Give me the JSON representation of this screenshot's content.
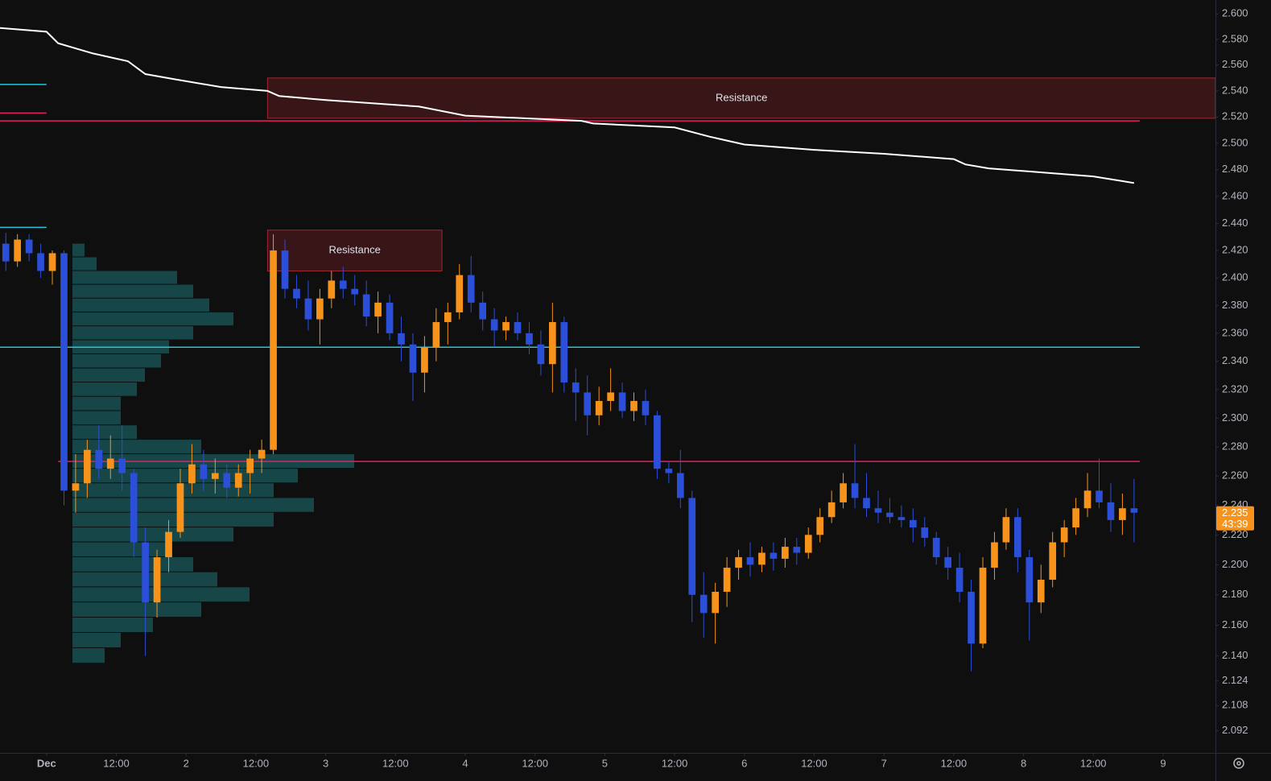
{
  "chart_data": {
    "type": "candlestick",
    "x": [
      "Nov 30 16:00",
      "Nov 30 18:00",
      "Nov 30 20:00",
      "Nov 30 22:00",
      "Dec 1 00:00",
      "Dec 1 02:00",
      "Dec 1 04:00",
      "Dec 1 06:00",
      "Dec 1 08:00",
      "Dec 1 10:00",
      "Dec 1 12:00",
      "Dec 1 14:00",
      "Dec 1 16:00",
      "Dec 1 18:00",
      "Dec 1 20:00",
      "Dec 1 22:00",
      "Dec 2 00:00",
      "Dec 2 02:00",
      "Dec 2 04:00",
      "Dec 2 06:00",
      "Dec 2 08:00",
      "Dec 2 10:00",
      "Dec 2 12:00",
      "Dec 2 14:00",
      "Dec 2 16:00",
      "Dec 2 18:00",
      "Dec 2 20:00",
      "Dec 2 22:00",
      "Dec 3 00:00",
      "Dec 3 02:00",
      "Dec 3 04:00",
      "Dec 3 06:00",
      "Dec 3 08:00",
      "Dec 3 10:00",
      "Dec 3 12:00",
      "Dec 3 14:00",
      "Dec 3 16:00",
      "Dec 3 18:00",
      "Dec 3 20:00",
      "Dec 3 22:00",
      "Dec 4 00:00",
      "Dec 4 02:00",
      "Dec 4 04:00",
      "Dec 4 06:00",
      "Dec 4 08:00",
      "Dec 4 10:00",
      "Dec 4 12:00",
      "Dec 4 14:00",
      "Dec 4 16:00",
      "Dec 4 18:00",
      "Dec 4 20:00",
      "Dec 4 22:00",
      "Dec 5 00:00",
      "Dec 5 02:00",
      "Dec 5 04:00",
      "Dec 5 06:00",
      "Dec 5 08:00",
      "Dec 5 10:00",
      "Dec 5 12:00",
      "Dec 5 14:00",
      "Dec 5 16:00",
      "Dec 5 18:00",
      "Dec 5 20:00",
      "Dec 5 22:00",
      "Dec 6 00:00",
      "Dec 6 02:00",
      "Dec 6 04:00",
      "Dec 6 06:00",
      "Dec 6 08:00",
      "Dec 6 10:00",
      "Dec 6 12:00",
      "Dec 6 14:00",
      "Dec 6 16:00",
      "Dec 6 18:00",
      "Dec 6 20:00",
      "Dec 6 22:00",
      "Dec 7 00:00",
      "Dec 7 02:00",
      "Dec 7 04:00",
      "Dec 7 06:00",
      "Dec 7 08:00",
      "Dec 7 10:00",
      "Dec 7 12:00",
      "Dec 7 14:00",
      "Dec 7 16:00",
      "Dec 7 18:00",
      "Dec 7 20:00",
      "Dec 7 22:00",
      "Dec 8 00:00",
      "Dec 8 02:00",
      "Dec 8 04:00",
      "Dec 8 06:00",
      "Dec 8 08:00",
      "Dec 8 10:00",
      "Dec 8 12:00",
      "Dec 8 14:00",
      "Dec 8 16:00",
      "Dec 8 18:00"
    ],
    "open": [
      2.425,
      2.412,
      2.428,
      2.418,
      2.405,
      2.418,
      2.25,
      2.255,
      2.278,
      2.265,
      2.272,
      2.262,
      2.215,
      2.175,
      2.205,
      2.222,
      2.255,
      2.268,
      2.258,
      2.262,
      2.252,
      2.262,
      2.272,
      2.278,
      2.42,
      2.392,
      2.385,
      2.37,
      2.385,
      2.398,
      2.392,
      2.388,
      2.372,
      2.382,
      2.36,
      2.352,
      2.332,
      2.35,
      2.368,
      2.375,
      2.402,
      2.382,
      2.37,
      2.362,
      2.368,
      2.36,
      2.352,
      2.338,
      2.368,
      2.325,
      2.318,
      2.302,
      2.312,
      2.318,
      2.305,
      2.312,
      2.302,
      2.265,
      2.262,
      2.245,
      2.18,
      2.168,
      2.182,
      2.198,
      2.205,
      2.2,
      2.208,
      2.204,
      2.212,
      2.208,
      2.22,
      2.232,
      2.242,
      2.255,
      2.245,
      2.238,
      2.235,
      2.232,
      2.23,
      2.225,
      2.218,
      2.205,
      2.198,
      2.182,
      2.148,
      2.198,
      2.215,
      2.232,
      2.205,
      2.175,
      2.19,
      2.215,
      2.225,
      2.238,
      2.25,
      2.242,
      2.23,
      2.238
    ],
    "high": [
      2.433,
      2.432,
      2.432,
      2.425,
      2.42,
      2.42,
      2.275,
      2.285,
      2.295,
      2.288,
      2.295,
      2.265,
      2.225,
      2.21,
      2.23,
      2.265,
      2.282,
      2.278,
      2.272,
      2.268,
      2.268,
      2.278,
      2.285,
      2.432,
      2.428,
      2.402,
      2.398,
      2.392,
      2.405,
      2.408,
      2.402,
      2.398,
      2.39,
      2.388,
      2.372,
      2.36,
      2.358,
      2.378,
      2.382,
      2.41,
      2.416,
      2.39,
      2.378,
      2.372,
      2.375,
      2.368,
      2.362,
      2.382,
      2.372,
      2.335,
      2.33,
      2.322,
      2.335,
      2.325,
      2.318,
      2.32,
      2.305,
      2.27,
      2.278,
      2.25,
      2.195,
      2.188,
      2.205,
      2.21,
      2.215,
      2.212,
      2.215,
      2.218,
      2.218,
      2.225,
      2.238,
      2.25,
      2.262,
      2.282,
      2.262,
      2.25,
      2.245,
      2.24,
      2.238,
      2.232,
      2.222,
      2.212,
      2.208,
      2.19,
      2.205,
      2.222,
      2.238,
      2.238,
      2.21,
      2.2,
      2.222,
      2.23,
      2.245,
      2.262,
      2.272,
      2.255,
      2.248,
      2.258
    ],
    "low": [
      2.405,
      2.408,
      2.412,
      2.4,
      2.395,
      2.24,
      2.235,
      2.245,
      2.258,
      2.258,
      2.25,
      2.205,
      2.14,
      2.165,
      2.195,
      2.218,
      2.248,
      2.25,
      2.248,
      2.245,
      2.246,
      2.248,
      2.262,
      2.275,
      2.385,
      2.378,
      2.362,
      2.352,
      2.378,
      2.385,
      2.38,
      2.365,
      2.36,
      2.355,
      2.34,
      2.312,
      2.318,
      2.34,
      2.352,
      2.37,
      2.375,
      2.362,
      2.35,
      2.355,
      2.355,
      2.345,
      2.33,
      2.318,
      2.318,
      2.298,
      2.288,
      2.295,
      2.305,
      2.3,
      2.298,
      2.295,
      2.258,
      2.255,
      2.238,
      2.162,
      2.152,
      2.148,
      2.172,
      2.19,
      2.192,
      2.195,
      2.196,
      2.198,
      2.2,
      2.204,
      2.215,
      2.228,
      2.238,
      2.238,
      2.232,
      2.228,
      2.228,
      2.225,
      2.215,
      2.212,
      2.2,
      2.19,
      2.175,
      2.13,
      2.145,
      2.19,
      2.21,
      2.195,
      2.15,
      2.168,
      2.185,
      2.205,
      2.22,
      2.232,
      2.238,
      2.222,
      2.22,
      2.215
    ],
    "close": [
      2.412,
      2.428,
      2.418,
      2.405,
      2.418,
      2.25,
      2.255,
      2.278,
      2.265,
      2.272,
      2.262,
      2.215,
      2.175,
      2.205,
      2.222,
      2.255,
      2.268,
      2.258,
      2.262,
      2.252,
      2.262,
      2.272,
      2.278,
      2.42,
      2.392,
      2.385,
      2.37,
      2.385,
      2.398,
      2.392,
      2.388,
      2.372,
      2.382,
      2.36,
      2.352,
      2.332,
      2.35,
      2.368,
      2.375,
      2.402,
      2.382,
      2.37,
      2.362,
      2.368,
      2.36,
      2.352,
      2.338,
      2.368,
      2.325,
      2.318,
      2.302,
      2.312,
      2.318,
      2.305,
      2.312,
      2.302,
      2.265,
      2.262,
      2.245,
      2.18,
      2.168,
      2.182,
      2.198,
      2.205,
      2.2,
      2.208,
      2.204,
      2.212,
      2.208,
      2.22,
      2.232,
      2.242,
      2.255,
      2.245,
      2.238,
      2.235,
      2.232,
      2.23,
      2.225,
      2.218,
      2.205,
      2.198,
      2.182,
      2.148,
      2.198,
      2.215,
      2.232,
      2.205,
      2.175,
      2.19,
      2.215,
      2.225,
      2.238,
      2.25,
      2.242,
      2.23,
      2.238,
      2.235
    ],
    "up_color": "#f7931a",
    "down_color": "#2b4fd8",
    "log_scale": true,
    "ylim": [
      2.078,
      2.611
    ],
    "yticks": [
      {
        "value": 2.6,
        "label": "2.600"
      },
      {
        "value": 2.58,
        "label": "2.580"
      },
      {
        "value": 2.56,
        "label": "2.560"
      },
      {
        "value": 2.54,
        "label": "2.540"
      },
      {
        "value": 2.52,
        "label": "2.520"
      },
      {
        "value": 2.5,
        "label": "2.500"
      },
      {
        "value": 2.48,
        "label": "2.480"
      },
      {
        "value": 2.46,
        "label": "2.460"
      },
      {
        "value": 2.44,
        "label": "2.440"
      },
      {
        "value": 2.42,
        "label": "2.420"
      },
      {
        "value": 2.4,
        "label": "2.400"
      },
      {
        "value": 2.38,
        "label": "2.380"
      },
      {
        "value": 2.36,
        "label": "2.360"
      },
      {
        "value": 2.34,
        "label": "2.340"
      },
      {
        "value": 2.32,
        "label": "2.320"
      },
      {
        "value": 2.3,
        "label": "2.300"
      },
      {
        "value": 2.28,
        "label": "2.280"
      },
      {
        "value": 2.26,
        "label": "2.260"
      },
      {
        "value": 2.24,
        "label": "2.240"
      },
      {
        "value": 2.22,
        "label": "2.220"
      },
      {
        "value": 2.2,
        "label": "2.200"
      },
      {
        "value": 2.18,
        "label": "2.180"
      },
      {
        "value": 2.16,
        "label": "2.160"
      },
      {
        "value": 2.14,
        "label": "2.140"
      },
      {
        "value": 2.124,
        "label": "2.124"
      },
      {
        "value": 2.108,
        "label": "2.108"
      },
      {
        "value": 2.092,
        "label": "2.092"
      }
    ],
    "xlim": [
      "Nov 30 16:00",
      "Dec 9 09:00"
    ],
    "xticks": [
      {
        "value": "Dec 1 00:00",
        "label": "Dec"
      },
      {
        "value": "Dec 1 12:00",
        "label": "12:00"
      },
      {
        "value": "Dec 2 00:00",
        "label": "2"
      },
      {
        "value": "Dec 2 12:00",
        "label": "12:00"
      },
      {
        "value": "Dec 3 00:00",
        "label": "3"
      },
      {
        "value": "Dec 3 12:00",
        "label": "12:00"
      },
      {
        "value": "Dec 4 00:00",
        "label": "4"
      },
      {
        "value": "Dec 4 12:00",
        "label": "12:00"
      },
      {
        "value": "Dec 5 00:00",
        "label": "5"
      },
      {
        "value": "Dec 5 12:00",
        "label": "12:00"
      },
      {
        "value": "Dec 6 00:00",
        "label": "6"
      },
      {
        "value": "Dec 6 12:00",
        "label": "12:00"
      },
      {
        "value": "Dec 7 00:00",
        "label": "7"
      },
      {
        "value": "Dec 7 12:00",
        "label": "12:00"
      },
      {
        "value": "Dec 8 00:00",
        "label": "8"
      },
      {
        "value": "Dec 8 12:00",
        "label": "12:00"
      },
      {
        "value": "Dec 9 00:00",
        "label": "9"
      }
    ],
    "lines": [
      {
        "color": "#ffffff",
        "x": [
          "Nov 30 16:00",
          "Dec 1 00:00",
          "Dec 1 02:00",
          "Dec 1 08:00",
          "Dec 1 14:00",
          "Dec 1 17:00",
          "Dec 1 22:00",
          "Dec 2 06:00",
          "Dec 2 14:00",
          "Dec 2 16:00",
          "Dec 3 00:00",
          "Dec 3 16:00",
          "Dec 4 00:00",
          "Dec 4 20:00",
          "Dec 4 22:00",
          "Dec 5 12:00",
          "Dec 5 18:00",
          "Dec 6 00:00",
          "Dec 6 12:00",
          "Dec 7 00:00",
          "Dec 7 12:00",
          "Dec 7 14:00",
          "Dec 7 18:00",
          "Dec 8 00:00",
          "Dec 8 12:00",
          "Dec 8 19:00"
        ],
        "values": [
          2.589,
          2.586,
          2.577,
          2.569,
          2.563,
          2.553,
          2.549,
          2.543,
          2.54,
          2.536,
          2.533,
          2.528,
          2.521,
          2.517,
          2.515,
          2.512,
          2.505,
          2.499,
          2.495,
          2.492,
          2.488,
          2.484,
          2.481,
          2.479,
          2.475,
          2.47
        ]
      }
    ],
    "levels": [
      {
        "value": 2.35,
        "color": "#26c6da",
        "x": [
          "Nov 30 16:00",
          "Dec 8 20:00"
        ]
      },
      {
        "value": 2.27,
        "color": "#e91e63",
        "x": [
          "Dec 1 02:00",
          "Dec 8 20:00"
        ]
      },
      {
        "value": 2.517,
        "color": "#e91e63",
        "x": [
          "Nov 30 16:00",
          "Dec 8 20:00"
        ]
      },
      {
        "value": 2.545,
        "color": "#26c6da",
        "x": [
          "Nov 30 16:00",
          "Dec 1 00:00"
        ]
      },
      {
        "value": 2.523,
        "color": "#e91e63",
        "x": [
          "Nov 30 16:00",
          "Dec 1 00:00"
        ]
      },
      {
        "value": 2.437,
        "color": "#26c6da",
        "x": [
          "Nov 30 16:00",
          "Dec 1 00:00"
        ]
      }
    ],
    "zones": [
      {
        "label": "Resistance",
        "color": "#f23645",
        "x": [
          "Dec 2 14:00",
          "Dec 9 09:00"
        ],
        "y": [
          2.519,
          2.55
        ]
      },
      {
        "label": "Resistance",
        "color": "#f23645",
        "x": [
          "Dec 2 14:00",
          "Dec 3 20:00"
        ],
        "y": [
          2.405,
          2.435
        ]
      }
    ],
    "volume_profile": {
      "color": "#1f8a8f",
      "prices": [
        2.42,
        2.41,
        2.4,
        2.39,
        2.38,
        2.37,
        2.36,
        2.35,
        2.34,
        2.33,
        2.32,
        2.31,
        2.3,
        2.29,
        2.28,
        2.27,
        2.26,
        2.25,
        2.24,
        2.23,
        2.22,
        2.21,
        2.2,
        2.19,
        2.18,
        2.17,
        2.16,
        2.15,
        2.14
      ],
      "values": [
        15,
        30,
        130,
        150,
        170,
        200,
        150,
        120,
        110,
        90,
        80,
        60,
        60,
        80,
        160,
        350,
        280,
        250,
        300,
        250,
        200,
        120,
        150,
        180,
        220,
        160,
        100,
        60,
        40
      ]
    },
    "last_price": 2.235,
    "countdown": "43:39",
    "last_price_color": "#f7931a"
  }
}
